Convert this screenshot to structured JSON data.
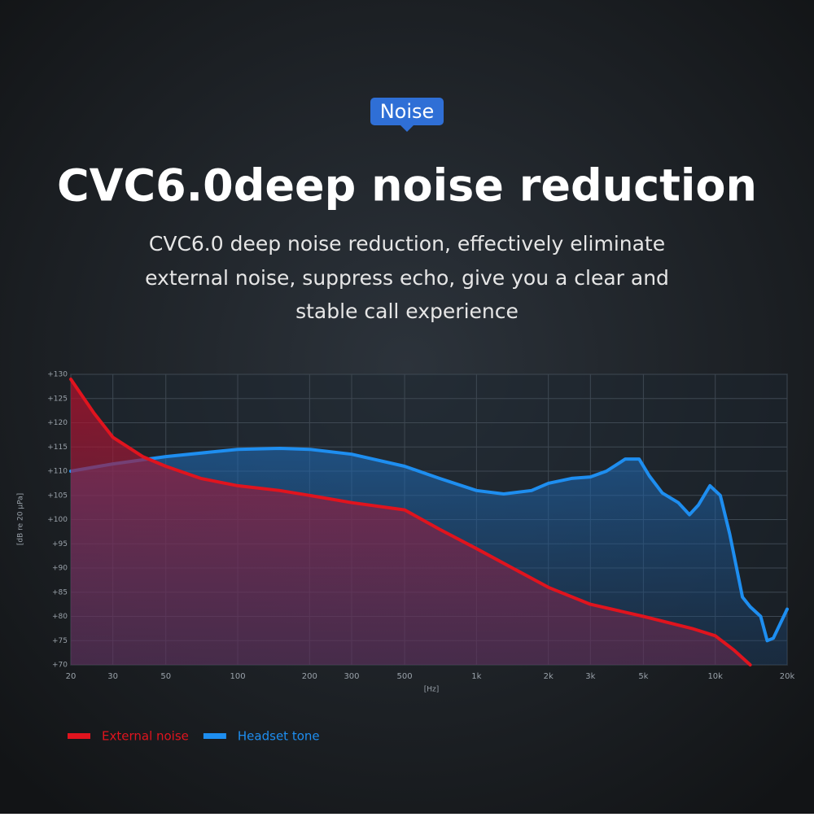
{
  "header": {
    "badge": "Noise",
    "title": "CVC6.0deep noise reduction",
    "subtitle_lines": [
      "CVC6.0 deep noise reduction, effectively eliminate",
      "external noise, suppress echo, give you a clear and",
      "stable call experience"
    ]
  },
  "chart_data": {
    "type": "area",
    "xscale": "log",
    "grid": true,
    "legend": "bottom-left",
    "x_label": "[Hz]",
    "y_label": "[dB re 20 μPa]",
    "xlim": [
      20,
      20000
    ],
    "ylim": [
      70,
      130
    ],
    "xticks": [
      20,
      30,
      50,
      100,
      200,
      300,
      500,
      {
        "value": 1000,
        "label": "1k"
      },
      {
        "value": 2000,
        "label": "2k"
      },
      {
        "value": 3000,
        "label": "3k"
      },
      {
        "value": 5000,
        "label": "5k"
      },
      {
        "value": 10000,
        "label": "10k"
      },
      {
        "value": 20000,
        "label": "20k"
      }
    ],
    "yticks": [
      {
        "value": 70,
        "label": "+70"
      },
      {
        "value": 75,
        "label": "+75"
      },
      {
        "value": 80,
        "label": "+80"
      },
      {
        "value": 85,
        "label": "+85"
      },
      {
        "value": 90,
        "label": "+90"
      },
      {
        "value": 95,
        "label": "+95"
      },
      {
        "value": 100,
        "label": "+100"
      },
      {
        "value": 105,
        "label": "+105"
      },
      {
        "value": 110,
        "label": "+110"
      },
      {
        "value": 115,
        "label": "+115"
      },
      {
        "value": 120,
        "label": "+120"
      },
      {
        "value": 125,
        "label": "+125"
      },
      {
        "value": 130,
        "label": "+130"
      }
    ],
    "series": [
      {
        "name": "Headset tone",
        "color": "#1e8ef0",
        "x": [
          20,
          30,
          50,
          100,
          150,
          200,
          300,
          500,
          700,
          1000,
          1300,
          1700,
          2000,
          2500,
          3000,
          3500,
          4200,
          4800,
          5300,
          6000,
          7000,
          7800,
          8500,
          9500,
          10500,
          11500,
          13000,
          14000,
          15500,
          16500,
          17500,
          20000
        ],
        "values": [
          110,
          111.5,
          113,
          114.5,
          114.7,
          114.5,
          113.5,
          111,
          108.5,
          106,
          105.3,
          106,
          107.5,
          108.5,
          108.8,
          110,
          112.5,
          112.5,
          109,
          105.5,
          103.5,
          101,
          103,
          107,
          105,
          97,
          84,
          82,
          80,
          75,
          75.5,
          81.5
        ]
      },
      {
        "name": "External noise",
        "color": "#e0141e",
        "x": [
          20,
          25,
          30,
          40,
          50,
          70,
          100,
          150,
          200,
          300,
          500,
          700,
          1000,
          2000,
          3000,
          5000,
          8000,
          10000,
          12000,
          14000
        ],
        "values": [
          129,
          122,
          117,
          113,
          111,
          108.5,
          107,
          106,
          105,
          103.5,
          102,
          98,
          94,
          86,
          82.5,
          80,
          77.5,
          76,
          73,
          70
        ]
      }
    ]
  }
}
